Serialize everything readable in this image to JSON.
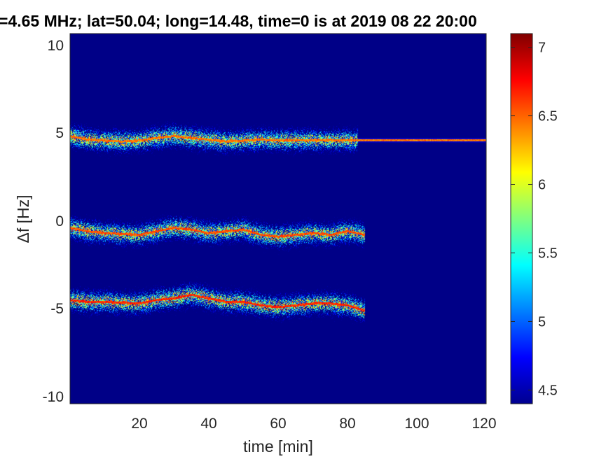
{
  "chart_data": {
    "type": "heatmap",
    "title": "=4.65 MHz;  lat=50.04; long=14.48, time=0 is at 2019 08 22 20:00",
    "xlabel": "time [min]",
    "ylabel": "Δf [Hz]",
    "xlim": [
      0,
      120
    ],
    "ylim": [
      -10.5,
      10.5
    ],
    "x_ticks": [
      "20",
      "40",
      "60",
      "80",
      "100",
      "120"
    ],
    "y_ticks": [
      "10",
      "5",
      "0",
      "-5",
      "-10"
    ],
    "colorbar": {
      "colormap": "jet",
      "clim": [
        4.4,
        7.1
      ],
      "ticks": [
        "4.5",
        "5",
        "5.5",
        "6",
        "6.5",
        "7"
      ]
    },
    "background_value": 4.42,
    "traces": [
      {
        "name": "upper",
        "points": [
          [
            0,
            4.7
          ],
          [
            5,
            4.5
          ],
          [
            10,
            4.45
          ],
          [
            15,
            4.4
          ],
          [
            20,
            4.45
          ],
          [
            25,
            4.6
          ],
          [
            30,
            4.7
          ],
          [
            35,
            4.6
          ],
          [
            40,
            4.5
          ],
          [
            45,
            4.4
          ],
          [
            50,
            4.45
          ],
          [
            55,
            4.5
          ],
          [
            60,
            4.45
          ],
          [
            65,
            4.45
          ],
          [
            70,
            4.45
          ],
          [
            75,
            4.45
          ],
          [
            80,
            4.45
          ],
          [
            85,
            4.45
          ],
          [
            90,
            4.45
          ],
          [
            100,
            4.45
          ],
          [
            110,
            4.45
          ],
          [
            120,
            4.45
          ]
        ],
        "peak": 6.6,
        "scatter_until": 83
      },
      {
        "name": "middle",
        "points": [
          [
            0,
            -0.5
          ],
          [
            5,
            -0.7
          ],
          [
            10,
            -0.8
          ],
          [
            15,
            -0.85
          ],
          [
            20,
            -0.9
          ],
          [
            25,
            -0.7
          ],
          [
            30,
            -0.5
          ],
          [
            35,
            -0.6
          ],
          [
            40,
            -0.8
          ],
          [
            45,
            -0.7
          ],
          [
            50,
            -0.6
          ],
          [
            55,
            -0.9
          ],
          [
            60,
            -1.0
          ],
          [
            65,
            -0.9
          ],
          [
            70,
            -0.8
          ],
          [
            75,
            -0.9
          ],
          [
            80,
            -0.7
          ],
          [
            85,
            -0.9
          ]
        ],
        "peak": 6.7,
        "scatter_until": 86
      },
      {
        "name": "lower",
        "points": [
          [
            0,
            -4.6
          ],
          [
            5,
            -4.7
          ],
          [
            10,
            -4.7
          ],
          [
            15,
            -4.75
          ],
          [
            20,
            -4.8
          ],
          [
            25,
            -4.6
          ],
          [
            30,
            -4.5
          ],
          [
            35,
            -4.3
          ],
          [
            40,
            -4.5
          ],
          [
            45,
            -4.7
          ],
          [
            50,
            -4.7
          ],
          [
            55,
            -4.9
          ],
          [
            60,
            -5.0
          ],
          [
            65,
            -4.9
          ],
          [
            70,
            -4.8
          ],
          [
            75,
            -4.8
          ],
          [
            80,
            -4.9
          ],
          [
            85,
            -5.2
          ]
        ],
        "peak": 6.8,
        "scatter_until": 86
      }
    ]
  }
}
